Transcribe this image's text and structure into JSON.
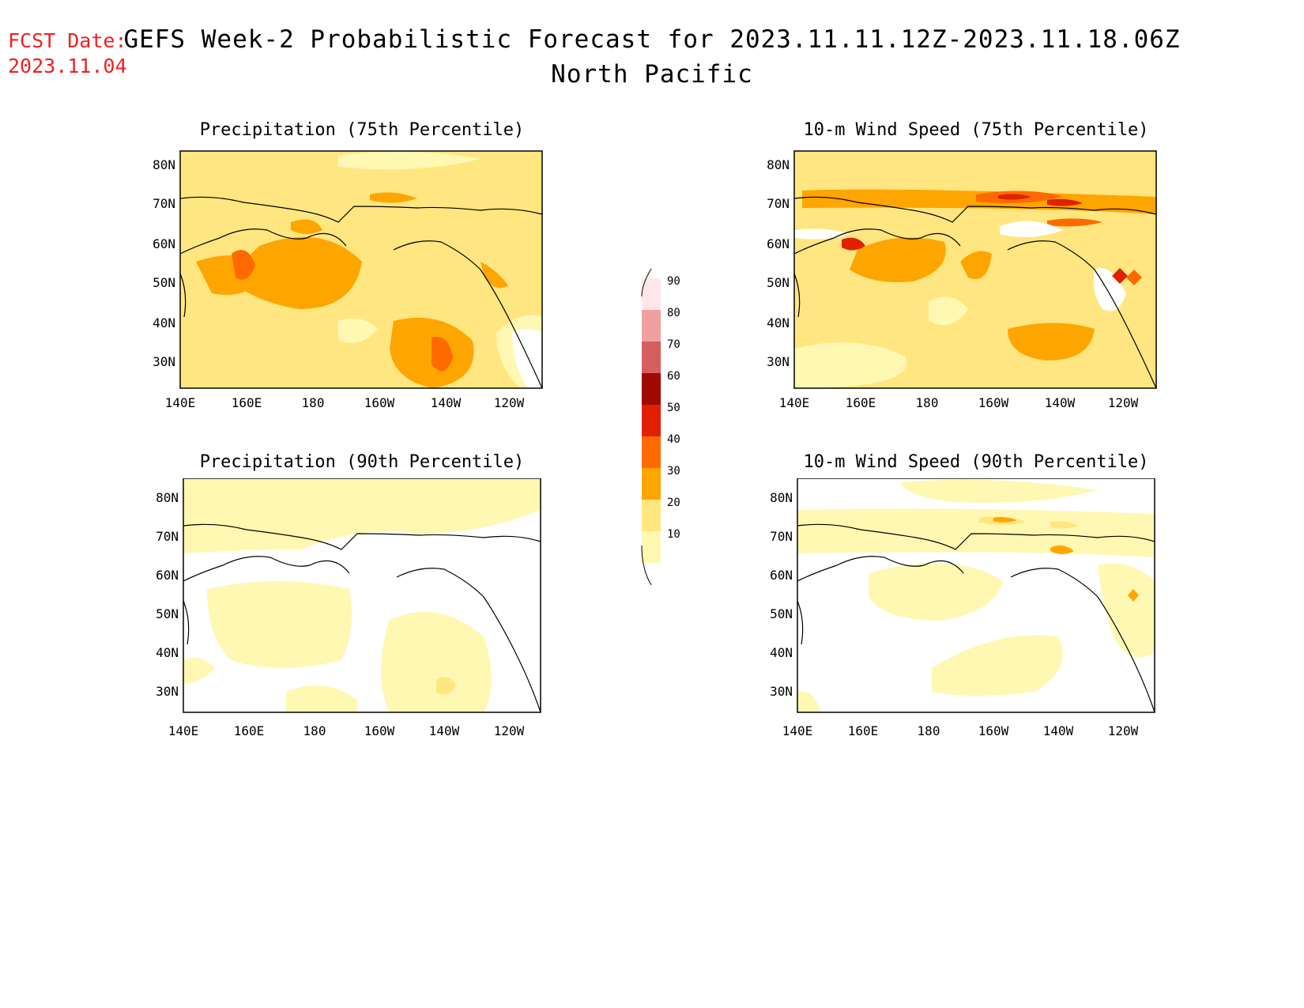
{
  "fcst": {
    "line1": "FCST Date:",
    "line2": "2023.11.04"
  },
  "title": {
    "main": "GEFS Week-2 Probabilistic Forecast for 2023.11.11.12Z-2023.11.18.06Z",
    "region": "North Pacific"
  },
  "colors": {
    "c10": "#fff8b3",
    "c20": "#ffe680",
    "c30": "#ffa500",
    "c40": "#ff6a00",
    "c50": "#e02000",
    "c60": "#a00a00",
    "c70": "#d65e5e",
    "c80": "#f0a0a0",
    "c90": "#ffe6ea"
  },
  "axes": {
    "lat_ticks": [
      "80N",
      "70N",
      "60N",
      "50N",
      "40N",
      "30N"
    ],
    "lon_ticks": [
      "140E",
      "160E",
      "180",
      "160W",
      "140W",
      "120W"
    ]
  },
  "colorbar": {
    "levels": [
      "10",
      "20",
      "30",
      "40",
      "50",
      "60",
      "70",
      "80",
      "90"
    ]
  },
  "panels": [
    {
      "id": "precip75",
      "title": "Precipitation (75th Percentile)"
    },
    {
      "id": "wind75",
      "title": "10-m Wind Speed (75th Percentile)"
    },
    {
      "id": "precip90",
      "title": "Precipitation (90th Percentile)"
    },
    {
      "id": "wind90",
      "title": "10-m Wind Speed (90th Percentile)"
    }
  ]
}
